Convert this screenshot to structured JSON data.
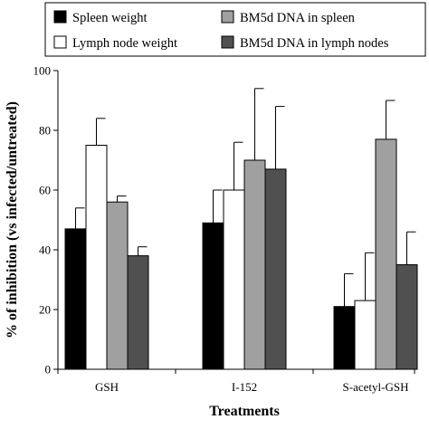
{
  "chart_data": {
    "type": "bar",
    "xlabel": "Treatments",
    "ylabel": "% of inhibition (vs infected/untreated)",
    "ylim": [
      0,
      100
    ],
    "yticks": [
      0,
      20,
      40,
      60,
      80,
      100
    ],
    "categories": [
      "GSH",
      "I-152",
      "S-acetyl-GSH"
    ],
    "legend_position": "top",
    "error_bars": "upper",
    "series": [
      {
        "name": "Spleen weight",
        "color": "#000000",
        "values": [
          47,
          49,
          21
        ],
        "errors": [
          7,
          11,
          11
        ]
      },
      {
        "name": "Lymph node weight",
        "color": "#ffffff",
        "values": [
          75,
          60,
          23
        ],
        "errors": [
          9,
          16,
          16
        ]
      },
      {
        "name": "BM5d DNA in spleen",
        "color": "#a0a0a0",
        "values": [
          56,
          70,
          77
        ],
        "errors": [
          2,
          24,
          13
        ]
      },
      {
        "name": "BM5d DNA in lymph nodes",
        "color": "#505050",
        "values": [
          38,
          67,
          35
        ],
        "errors": [
          3,
          21,
          11
        ]
      }
    ]
  }
}
